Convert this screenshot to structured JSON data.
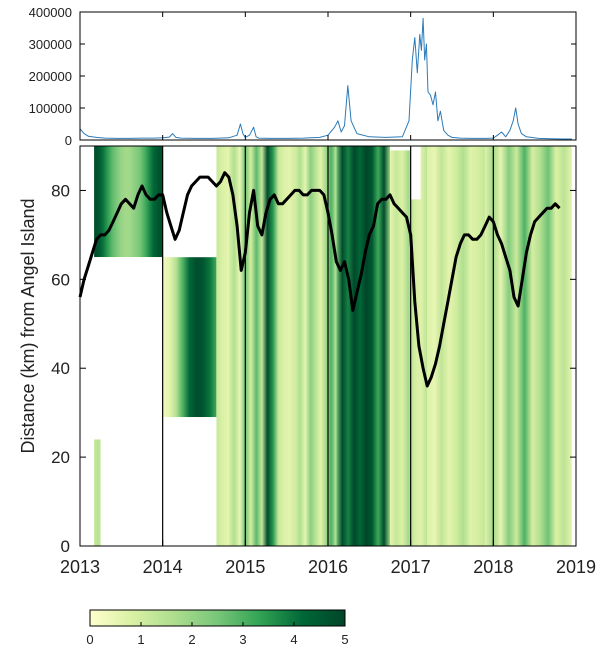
{
  "chart_data": [
    {
      "type": "line",
      "title": "",
      "xlabel": "",
      "ylabel": "",
      "xlim": [
        2013,
        2019
      ],
      "ylim": [
        0,
        400000
      ],
      "yticks": [
        0,
        100000,
        200000,
        300000,
        400000
      ],
      "ytick_labels": [
        "0",
        "100000",
        "200000",
        "300000",
        "400000"
      ],
      "grid": false,
      "line_color": "#2b7bb9",
      "series": [
        {
          "x": [
            2013.0,
            2013.05,
            2013.1,
            2013.2,
            2013.3,
            2013.45,
            2013.6,
            2013.75,
            2013.9,
            2014.0,
            2014.08,
            2014.12,
            2014.16,
            2014.22,
            2014.4,
            2014.6,
            2014.8,
            2014.9,
            2014.94,
            2014.97,
            2015.0,
            2015.05,
            2015.1,
            2015.13,
            2015.16,
            2015.3,
            2015.5,
            2015.7,
            2015.9,
            2016.0,
            2016.08,
            2016.12,
            2016.16,
            2016.2,
            2016.24,
            2016.28,
            2016.35,
            2016.5,
            2016.7,
            2016.9,
            2016.98,
            2017.02,
            2017.05,
            2017.08,
            2017.11,
            2017.13,
            2017.15,
            2017.17,
            2017.19,
            2017.21,
            2017.24,
            2017.27,
            2017.3,
            2017.33,
            2017.36,
            2017.4,
            2017.45,
            2017.5,
            2017.6,
            2017.75,
            2017.9,
            2018.0,
            2018.05,
            2018.1,
            2018.15,
            2018.2,
            2018.24,
            2018.27,
            2018.3,
            2018.34,
            2018.4,
            2018.55,
            2018.7,
            2018.85,
            2018.95
          ],
          "y": [
            35000,
            20000,
            12000,
            8000,
            6000,
            5000,
            5000,
            6000,
            6000,
            7000,
            9000,
            20000,
            8000,
            6000,
            5000,
            5000,
            7000,
            15000,
            50000,
            20000,
            8000,
            15000,
            40000,
            10000,
            6000,
            5000,
            5000,
            6000,
            8000,
            15000,
            40000,
            60000,
            25000,
            45000,
            170000,
            60000,
            20000,
            10000,
            8000,
            10000,
            60000,
            250000,
            320000,
            210000,
            330000,
            280000,
            380000,
            250000,
            300000,
            150000,
            140000,
            110000,
            150000,
            60000,
            90000,
            30000,
            15000,
            8000,
            6000,
            5000,
            5000,
            6000,
            15000,
            25000,
            10000,
            30000,
            60000,
            100000,
            50000,
            20000,
            10000,
            5000,
            4000,
            3000,
            3000
          ]
        }
      ]
    },
    {
      "type": "heatmap",
      "title": "",
      "xlabel": "",
      "ylabel": "Distance (km) from Angel Island",
      "xlim": [
        2013,
        2019
      ],
      "ylim": [
        0,
        90
      ],
      "xticks": [
        2013,
        2014,
        2015,
        2016,
        2017,
        2018,
        2019
      ],
      "xtick_labels": [
        "2013",
        "2014",
        "2015",
        "2016",
        "2017",
        "2018",
        "2019"
      ],
      "yticks": [
        0,
        20,
        40,
        60,
        80
      ],
      "ytick_labels": [
        "0",
        "20",
        "40",
        "60",
        "80"
      ],
      "vertical_lines": [
        2014,
        2015,
        2016,
        2017,
        2018
      ],
      "colorbar": {
        "min": 0,
        "max": 5,
        "ticks": [
          "0",
          "1",
          "2",
          "3",
          "4",
          "5"
        ],
        "colors": [
          "#ffffcc",
          "#d9f0a3",
          "#addd8e",
          "#78c679",
          "#31a354",
          "#006837",
          "#004529"
        ]
      },
      "value_bands": [
        {
          "t0": 2013.17,
          "t1": 2014.0,
          "d0": 65,
          "d1": 90,
          "values": [
            4.8,
            4.6,
            4.0,
            3.4,
            2.8,
            2.4,
            2.0,
            1.8,
            1.9,
            2.2,
            2.5,
            3.0,
            3.6,
            4.2,
            4.6,
            4.8
          ]
        },
        {
          "t0": 2013.17,
          "t1": 2013.25,
          "d0": 0,
          "d1": 24,
          "values": [
            1.2,
            1.4,
            1.3
          ]
        },
        {
          "t0": 2014.0,
          "t1": 2014.65,
          "d0": 29,
          "d1": 65,
          "values": [
            0.3,
            0.6,
            1.5,
            3.0,
            4.2,
            4.8,
            4.6,
            4.0,
            3.2
          ]
        },
        {
          "t0": 2014.65,
          "t1": 2014.8,
          "d0": 0,
          "d1": 90,
          "values": [
            1.2,
            0.8,
            0.6
          ]
        },
        {
          "t0": 2014.8,
          "t1": 2015.6,
          "d0": 0,
          "d1": 90,
          "values": [
            0.8,
            1.6,
            0.5,
            2.6,
            0.9,
            2.8,
            1.2,
            4.8,
            3.5,
            1.2,
            0.8,
            0.6,
            1.0
          ]
        },
        {
          "t0": 2015.6,
          "t1": 2016.1,
          "d0": 0,
          "d1": 90,
          "values": [
            0.9,
            1.6,
            0.6,
            2.2,
            1.4,
            0.7,
            1.8,
            3.0,
            1.3
          ]
        },
        {
          "t0": 2016.1,
          "t1": 2016.75,
          "d0": 0,
          "d1": 90,
          "values": [
            2.5,
            4.8,
            3.8,
            4.9,
            4.2,
            5.0,
            4.6,
            3.2,
            4.8,
            2.0
          ]
        },
        {
          "t0": 2016.75,
          "t1": 2017.2,
          "d0": 0,
          "d1": 90,
          "values": [
            0.6,
            1.2,
            0.8,
            1.8,
            0.9,
            0.7,
            1.4
          ]
        },
        {
          "t0": 2017.2,
          "t1": 2017.9,
          "d0": 0,
          "d1": 90,
          "values": [
            0.8,
            0.5,
            1.3,
            0.6,
            1.0,
            1.6,
            0.7,
            0.9,
            1.2
          ]
        },
        {
          "t0": 2017.9,
          "t1": 2018.95,
          "d0": 0,
          "d1": 90,
          "values": [
            0.7,
            1.8,
            0.6,
            2.3,
            1.1,
            3.0,
            0.9,
            1.6,
            2.6,
            0.8,
            1.4,
            0.6
          ]
        }
      ],
      "blank_regions": [
        {
          "t0": 2013.0,
          "t1": 2013.17,
          "d0": 0,
          "d1": 90
        },
        {
          "t0": 2013.25,
          "t1": 2014.0,
          "d0": 0,
          "d1": 65
        },
        {
          "t0": 2013.17,
          "t1": 2013.25,
          "d0": 24,
          "d1": 65
        },
        {
          "t0": 2014.0,
          "t1": 2014.65,
          "d0": 0,
          "d1": 29
        },
        {
          "t0": 2014.0,
          "t1": 2014.65,
          "d0": 65,
          "d1": 90
        },
        {
          "t0": 2016.75,
          "t1": 2017.0,
          "d0": 89,
          "d1": 90
        },
        {
          "t0": 2017.0,
          "t1": 2017.12,
          "d0": 78,
          "d1": 90
        },
        {
          "t0": 2018.95,
          "t1": 2019.0,
          "d0": 0,
          "d1": 90
        }
      ],
      "series": [
        {
          "line_color": "#000000",
          "x": [
            2013.0,
            2013.05,
            2013.1,
            2013.15,
            2013.2,
            2013.25,
            2013.3,
            2013.35,
            2013.4,
            2013.45,
            2013.5,
            2013.55,
            2013.6,
            2013.65,
            2013.7,
            2013.75,
            2013.8,
            2013.85,
            2013.9,
            2013.95,
            2014.0,
            2014.05,
            2014.1,
            2014.15,
            2014.2,
            2014.25,
            2014.3,
            2014.35,
            2014.4,
            2014.45,
            2014.5,
            2014.55,
            2014.6,
            2014.65,
            2014.7,
            2014.75,
            2014.8,
            2014.85,
            2014.9,
            2014.95,
            2015.0,
            2015.05,
            2015.1,
            2015.15,
            2015.2,
            2015.25,
            2015.3,
            2015.35,
            2015.4,
            2015.45,
            2015.5,
            2015.55,
            2015.6,
            2015.65,
            2015.7,
            2015.75,
            2015.8,
            2015.85,
            2015.9,
            2015.95,
            2016.0,
            2016.05,
            2016.1,
            2016.15,
            2016.2,
            2016.25,
            2016.3,
            2016.35,
            2016.4,
            2016.45,
            2016.5,
            2016.55,
            2016.6,
            2016.65,
            2016.7,
            2016.75,
            2016.8,
            2016.85,
            2016.9,
            2016.95,
            2017.0,
            2017.05,
            2017.1,
            2017.15,
            2017.2,
            2017.25,
            2017.3,
            2017.35,
            2017.4,
            2017.45,
            2017.5,
            2017.55,
            2017.6,
            2017.65,
            2017.7,
            2017.75,
            2017.8,
            2017.85,
            2017.9,
            2017.95,
            2018.0,
            2018.05,
            2018.1,
            2018.15,
            2018.2,
            2018.25,
            2018.3,
            2018.35,
            2018.4,
            2018.45,
            2018.5,
            2018.55,
            2018.6,
            2018.65,
            2018.7,
            2018.75,
            2018.8
          ],
          "y": [
            56,
            60,
            63,
            66,
            69,
            70,
            70,
            71,
            73,
            75,
            77,
            78,
            77,
            76,
            79,
            81,
            79,
            78,
            78,
            79,
            79,
            75,
            72,
            69,
            71,
            75,
            79,
            81,
            82,
            83,
            83,
            83,
            82,
            81,
            82,
            84,
            83,
            79,
            72,
            62,
            66,
            75,
            80,
            72,
            70,
            75,
            78,
            79,
            77,
            77,
            78,
            79,
            80,
            80,
            79,
            79,
            80,
            80,
            80,
            79,
            75,
            70,
            64,
            62,
            64,
            60,
            53,
            57,
            61,
            66,
            70,
            72,
            77,
            78,
            78,
            79,
            77,
            76,
            75,
            74,
            70,
            55,
            45,
            40,
            36,
            38,
            41,
            45,
            50,
            55,
            60,
            65,
            68,
            70,
            70,
            69,
            69,
            70,
            72,
            74,
            73,
            70,
            68,
            65,
            62,
            56,
            54,
            60,
            66,
            70,
            73,
            74,
            75,
            76,
            76,
            77,
            76
          ]
        }
      ]
    }
  ]
}
